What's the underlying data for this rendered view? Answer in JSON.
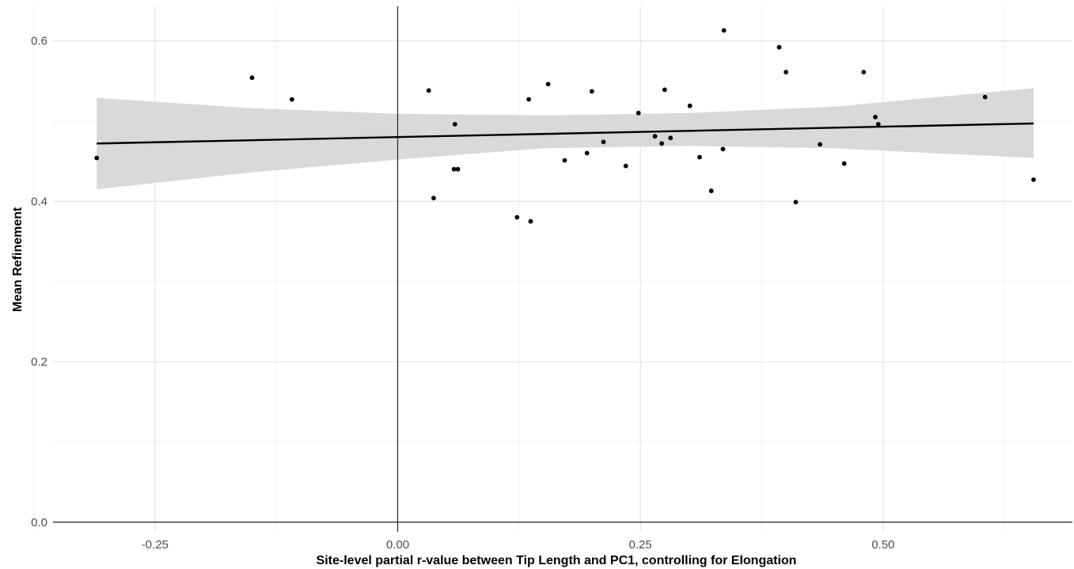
{
  "chart_data": {
    "type": "scatter",
    "title": "",
    "xlabel": "Site-level partial r-value between Tip Length and PC1, controlling for Elongation",
    "ylabel": "Mean Refinement",
    "xlim": [
      -0.355,
      0.695
    ],
    "ylim": [
      -0.012,
      0.643
    ],
    "x_ticks": [
      -0.25,
      0.0,
      0.25,
      0.5
    ],
    "x_tick_labels": [
      "-0.25",
      "0.00",
      "0.25",
      "0.50"
    ],
    "x_minor_ticks": [
      -0.375,
      -0.125,
      0.125,
      0.375,
      0.625
    ],
    "y_ticks": [
      0.0,
      0.2,
      0.4,
      0.6
    ],
    "y_tick_labels": [
      "0.0",
      "0.2",
      "0.4",
      "0.6"
    ],
    "y_minor_ticks": [
      0.1,
      0.3,
      0.5
    ],
    "grid": true,
    "reference_lines": {
      "x": 0.0,
      "y": 0.0
    },
    "points": [
      {
        "x": -0.31,
        "y": 0.454
      },
      {
        "x": -0.15,
        "y": 0.554
      },
      {
        "x": -0.109,
        "y": 0.527
      },
      {
        "x": 0.032,
        "y": 0.538
      },
      {
        "x": 0.037,
        "y": 0.404
      },
      {
        "x": 0.058,
        "y": 0.44
      },
      {
        "x": 0.059,
        "y": 0.496
      },
      {
        "x": 0.062,
        "y": 0.44
      },
      {
        "x": 0.123,
        "y": 0.38
      },
      {
        "x": 0.135,
        "y": 0.527
      },
      {
        "x": 0.137,
        "y": 0.375
      },
      {
        "x": 0.155,
        "y": 0.546
      },
      {
        "x": 0.172,
        "y": 0.451
      },
      {
        "x": 0.195,
        "y": 0.46
      },
      {
        "x": 0.2,
        "y": 0.537
      },
      {
        "x": 0.212,
        "y": 0.474
      },
      {
        "x": 0.235,
        "y": 0.444
      },
      {
        "x": 0.248,
        "y": 0.51
      },
      {
        "x": 0.265,
        "y": 0.481
      },
      {
        "x": 0.272,
        "y": 0.472
      },
      {
        "x": 0.275,
        "y": 0.539
      },
      {
        "x": 0.281,
        "y": 0.479
      },
      {
        "x": 0.301,
        "y": 0.519
      },
      {
        "x": 0.311,
        "y": 0.455
      },
      {
        "x": 0.323,
        "y": 0.413
      },
      {
        "x": 0.335,
        "y": 0.465
      },
      {
        "x": 0.336,
        "y": 0.613
      },
      {
        "x": 0.393,
        "y": 0.592
      },
      {
        "x": 0.4,
        "y": 0.561
      },
      {
        "x": 0.41,
        "y": 0.399
      },
      {
        "x": 0.435,
        "y": 0.471
      },
      {
        "x": 0.46,
        "y": 0.447
      },
      {
        "x": 0.48,
        "y": 0.561
      },
      {
        "x": 0.492,
        "y": 0.505
      },
      {
        "x": 0.495,
        "y": 0.496
      },
      {
        "x": 0.605,
        "y": 0.53
      },
      {
        "x": 0.655,
        "y": 0.427
      }
    ],
    "trend_line": {
      "x": [
        -0.31,
        0.655
      ],
      "y": [
        0.472,
        0.497
      ]
    },
    "confidence_band": {
      "x": [
        -0.31,
        -0.15,
        0.0,
        0.15,
        0.3,
        0.45,
        0.655
      ],
      "upper": [
        0.529,
        0.516,
        0.509,
        0.507,
        0.51,
        0.518,
        0.541
      ],
      "lower": [
        0.415,
        0.436,
        0.452,
        0.466,
        0.469,
        0.466,
        0.454
      ]
    },
    "colors": {
      "points": "#000000",
      "trend_line": "#000000",
      "confidence_band": "#d9d9d9",
      "grid_major": "#e5e5e5",
      "grid_minor": "#f2f2f2",
      "reference_line": "#333333",
      "tick_label": "#4d4d4d"
    }
  }
}
